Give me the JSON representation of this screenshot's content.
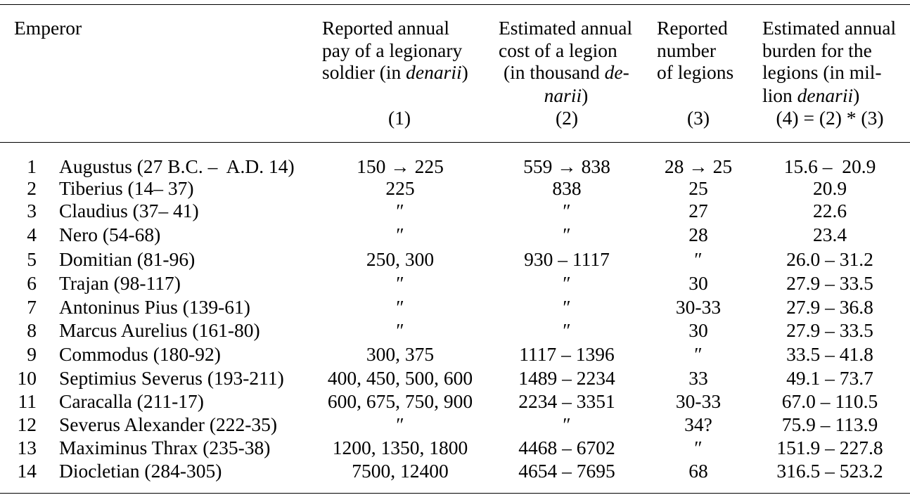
{
  "table": {
    "header": {
      "emperor": "Emperor",
      "col1": {
        "lines": [
          [
            "Reported annual"
          ],
          [
            "pay of a legionary"
          ],
          [
            "soldier (in ",
            "denarii",
            ")"
          ]
        ],
        "number": "(1)"
      },
      "col2": {
        "lines": [
          [
            "Estimated annual"
          ],
          [
            "cost of a legion"
          ],
          [
            "(in thousand ",
            "de-"
          ],
          [
            "narii",
            ")"
          ]
        ],
        "number": "(2)"
      },
      "col3": {
        "lines": [
          [
            "Reported"
          ],
          [
            "number"
          ],
          [
            "of legions"
          ]
        ],
        "number": "(3)"
      },
      "col4": {
        "lines": [
          [
            "Estimated annual"
          ],
          [
            "burden for the"
          ],
          [
            "legions (in mil-"
          ],
          [
            "lion ",
            "denarii",
            ")"
          ]
        ],
        "number": "(4) = (2) * (3)"
      }
    },
    "rows": [
      {
        "no": "1",
        "emperor": "Augustus (27 B.C. –  A.D. 14)",
        "pay": "150 → 225",
        "cost": "559 → 838",
        "legions": "28 → 25",
        "burden": "15.6 –  20.9"
      },
      {
        "no": "2",
        "emperor": "Tiberius (14– 37)",
        "pay": "225",
        "cost": "838",
        "legions": "25",
        "burden": "20.9"
      },
      {
        "no": "3",
        "emperor": "Claudius (37– 41)",
        "pay": "″",
        "cost": "″",
        "legions": "27",
        "burden": "22.6"
      },
      {
        "no": "4",
        "emperor": "Nero (54-68)",
        "pay": "″",
        "cost": "″",
        "legions": "28",
        "burden": "23.4"
      },
      {
        "no": "5",
        "emperor": "Domitian (81-96)",
        "pay": "250, 300",
        "cost": "930 – 1117",
        "legions": "″",
        "burden": "26.0 – 31.2"
      },
      {
        "no": "6",
        "emperor": "Trajan (98-117)",
        "pay": "″",
        "cost": "″",
        "legions": "30",
        "burden": "27.9 – 33.5"
      },
      {
        "no": "7",
        "emperor": "Antoninus Pius (139-61)",
        "pay": "″",
        "cost": "″",
        "legions": "30-33",
        "burden": "27.9 – 36.8"
      },
      {
        "no": "8",
        "emperor": "Marcus Aurelius (161-80)",
        "pay": "″",
        "cost": "″",
        "legions": "30",
        "burden": "27.9 – 33.5"
      },
      {
        "no": "9",
        "emperor": "Commodus (180-92)",
        "pay": "300, 375",
        "cost": "1117 – 1396",
        "legions": "″",
        "burden": "33.5 – 41.8"
      },
      {
        "no": "10",
        "emperor": "Septimius Severus (193-211)",
        "pay": "400, 450, 500, 600",
        "cost": "1489 – 2234",
        "legions": "33",
        "burden": "49.1 – 73.7"
      },
      {
        "no": "11",
        "emperor": "Caracalla (211-17)",
        "pay": "600, 675, 750, 900",
        "cost": "2234 – 3351",
        "legions": "30-33",
        "burden": "67.0 – 110.5"
      },
      {
        "no": "12",
        "emperor": "Severus Alexander (222-35)",
        "pay": "″",
        "cost": "″",
        "legions": "34?",
        "burden": "75.9 – 113.9"
      },
      {
        "no": "13",
        "emperor": "Maximinus Thrax (235-38)",
        "pay": "1200, 1350, 1800",
        "cost": "4468 – 6702",
        "legions": "″",
        "burden": "151.9 – 227.8"
      },
      {
        "no": "14",
        "emperor": "Diocletian (284-305)",
        "pay": "7500, 12400",
        "cost": "4654 – 7695",
        "legions": "68",
        "burden": "316.5 – 523.2"
      }
    ]
  }
}
